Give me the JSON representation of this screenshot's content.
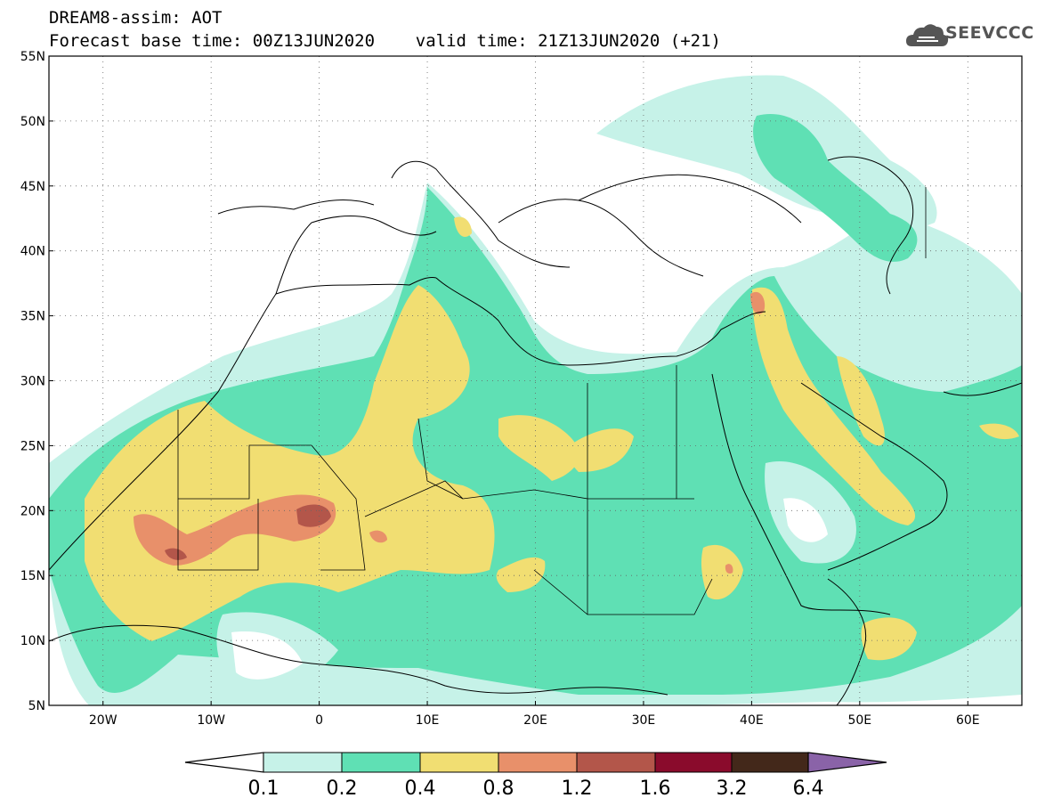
{
  "title": {
    "line1": "DREAM8-assim: AOT",
    "line2": "Forecast base time: 00Z13JUN2020    valid time: 21Z13JUN2020 (+21)"
  },
  "logo": {
    "text": "SEEVCCC",
    "icon": "cloud-icon"
  },
  "map": {
    "lon_range": [
      -25,
      65
    ],
    "lat_range": [
      5,
      55
    ],
    "lat_ticks": [
      "5N",
      "10N",
      "15N",
      "20N",
      "25N",
      "30N",
      "35N",
      "40N",
      "45N",
      "50N",
      "55N"
    ],
    "lon_ticks": [
      "20W",
      "10W",
      "0",
      "10E",
      "20E",
      "30E",
      "40E",
      "50E",
      "60E"
    ],
    "grid": "dotted",
    "colors": {
      "c01": "#c6f2e8",
      "c02": "#5fe0b4",
      "c04": "#f1de72",
      "c08": "#e8906a",
      "c12": "#b3564a",
      "c16": "#8a0b2c",
      "c32": "#43281a",
      "c64": "#8a63a8"
    }
  },
  "colorbar": {
    "labels": [
      "0.1",
      "0.2",
      "0.4",
      "0.8",
      "1.2",
      "1.6",
      "3.2",
      "6.4"
    ]
  }
}
